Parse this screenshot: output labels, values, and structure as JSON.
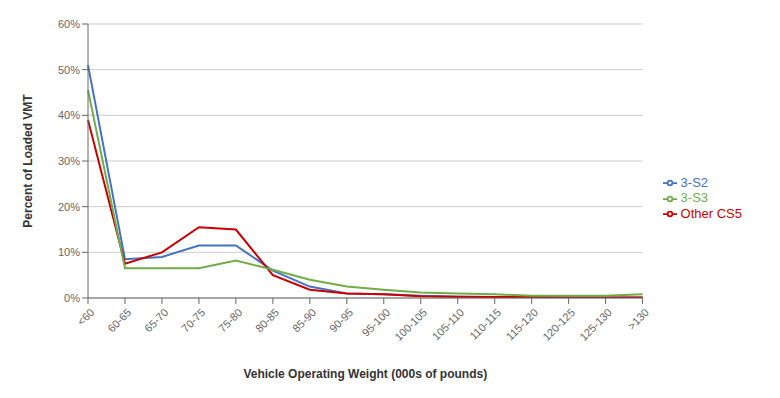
{
  "chart_data": {
    "type": "line",
    "xlabel": "Vehicle Operating Weight (000s of pounds)",
    "ylabel": "Percent of Loaded  VMT",
    "categories": [
      "<60",
      "60-65",
      "65-70",
      "70-75",
      "75-80",
      "80-85",
      "85-90",
      "90-95",
      "95-100",
      "100-105",
      "105-110",
      "110-115",
      "115-120",
      "120-125",
      "125-130",
      ">130"
    ],
    "series": [
      {
        "name": "3-S2",
        "color": "#4472C4",
        "values": [
          0.51,
          0.085,
          0.09,
          0.115,
          0.115,
          0.06,
          0.025,
          0.01,
          0.008,
          0.005,
          0.003,
          0.002,
          0.002,
          0.001,
          0.001,
          0.001
        ]
      },
      {
        "name": "Other CS5",
        "color": "#CC0000",
        "values": [
          0.39,
          0.075,
          0.1,
          0.155,
          0.15,
          0.05,
          0.018,
          0.01,
          0.008,
          0.004,
          0.003,
          0.002,
          0.002,
          0.001,
          0.001,
          0.001
        ]
      },
      {
        "name": "3-S3",
        "color": "#70AD47",
        "values": [
          0.455,
          0.065,
          0.065,
          0.065,
          0.082,
          0.062,
          0.04,
          0.025,
          0.018,
          0.012,
          0.01,
          0.008,
          0.005,
          0.005,
          0.005,
          0.008
        ]
      }
    ],
    "ylim": [
      0,
      0.6
    ],
    "yticks": [
      {
        "value": 0.0,
        "label": "0%"
      },
      {
        "value": 0.1,
        "label": "10%"
      },
      {
        "value": 0.2,
        "label": "20%"
      },
      {
        "value": 0.3,
        "label": "30%"
      },
      {
        "value": 0.4,
        "label": "40%"
      },
      {
        "value": 0.5,
        "label": "50%"
      },
      {
        "value": 0.6,
        "label": "60%"
      }
    ],
    "grid": true,
    "legend": "right"
  }
}
